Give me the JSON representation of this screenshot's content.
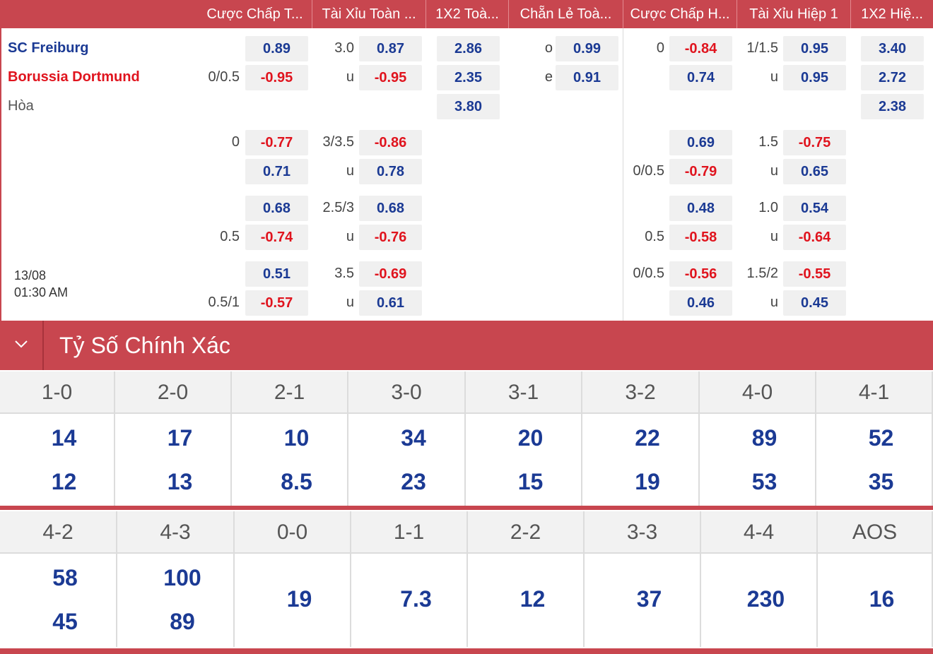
{
  "headers": [
    "Cược Chấp T...",
    "Tài Xỉu Toàn ...",
    "1X2 Toà...",
    "Chẵn Lẻ Toà...",
    "Cược Chấp H...",
    "Tài Xỉu Hiệp 1",
    "1X2 Hiệ..."
  ],
  "teams": {
    "home": "SC Freiburg",
    "away": "Borussia Dortmund",
    "draw": "Hòa"
  },
  "kickoff": {
    "date": "13/08",
    "time": "01:30 AM"
  },
  "main": {
    "ft_hdp": {
      "line1": "",
      "line2": "0/0.5",
      "odd1": "0.89",
      "odd2": "-0.95"
    },
    "ft_ou": {
      "line1": "3.0",
      "line2": "u",
      "odd1": "0.87",
      "odd2": "-0.95"
    },
    "ft_1x2": {
      "home": "2.86",
      "away": "2.35",
      "draw": "3.80"
    },
    "ft_oe": {
      "line1": "o",
      "line2": "e",
      "odd1": "0.99",
      "odd2": "0.91"
    },
    "h1_hdp": {
      "line1": "0",
      "line2": "",
      "odd1": "-0.84",
      "odd2": "0.74"
    },
    "h1_ou": {
      "line1": "1/1.5",
      "line2": "u",
      "odd1": "0.95",
      "odd2": "0.95"
    },
    "h1_1x2": {
      "home": "3.40",
      "away": "2.72",
      "draw": "2.38"
    }
  },
  "extra": [
    {
      "ft_hdp": {
        "line1": "0",
        "line2": "",
        "odd1": "-0.77",
        "odd2": "0.71"
      },
      "ft_ou": {
        "line1": "3/3.5",
        "line2": "u",
        "odd1": "-0.86",
        "odd2": "0.78"
      },
      "h1_hdp": {
        "line1": "",
        "line2": "0/0.5",
        "odd1": "0.69",
        "odd2": "-0.79"
      },
      "h1_ou": {
        "line1": "1.5",
        "line2": "u",
        "odd1": "-0.75",
        "odd2": "0.65"
      }
    },
    {
      "ft_hdp": {
        "line1": "",
        "line2": "0.5",
        "odd1": "0.68",
        "odd2": "-0.74"
      },
      "ft_ou": {
        "line1": "2.5/3",
        "line2": "u",
        "odd1": "0.68",
        "odd2": "-0.76"
      },
      "h1_hdp": {
        "line1": "",
        "line2": "0.5",
        "odd1": "0.48",
        "odd2": "-0.58"
      },
      "h1_ou": {
        "line1": "1.0",
        "line2": "u",
        "odd1": "0.54",
        "odd2": "-0.64"
      }
    },
    {
      "ft_hdp": {
        "line1": "",
        "line2": "0.5/1",
        "odd1": "0.51",
        "odd2": "-0.57"
      },
      "ft_ou": {
        "line1": "3.5",
        "line2": "u",
        "odd1": "-0.69",
        "odd2": "0.61"
      },
      "h1_hdp": {
        "line1": "0/0.5",
        "line2": "",
        "odd1": "-0.56",
        "odd2": "0.46"
      },
      "h1_ou": {
        "line1": "1.5/2",
        "line2": "u",
        "odd1": "-0.55",
        "odd2": "0.45"
      }
    }
  ],
  "section_title": "Tỷ Số Chính Xác",
  "correct_score_row1": [
    {
      "score": "1-0",
      "home": "14",
      "away": "12"
    },
    {
      "score": "2-0",
      "home": "17",
      "away": "13"
    },
    {
      "score": "2-1",
      "home": "10",
      "away": "8.5"
    },
    {
      "score": "3-0",
      "home": "34",
      "away": "23"
    },
    {
      "score": "3-1",
      "home": "20",
      "away": "15"
    },
    {
      "score": "3-2",
      "home": "22",
      "away": "19"
    },
    {
      "score": "4-0",
      "home": "89",
      "away": "53"
    },
    {
      "score": "4-1",
      "home": "52",
      "away": "35"
    }
  ],
  "correct_score_row2": [
    {
      "score": "4-2",
      "home": "58",
      "away": "45"
    },
    {
      "score": "4-3",
      "home": "100",
      "away": "89"
    },
    {
      "score": "0-0",
      "single": "19"
    },
    {
      "score": "1-1",
      "single": "7.3"
    },
    {
      "score": "2-2",
      "single": "12"
    },
    {
      "score": "3-3",
      "single": "37"
    },
    {
      "score": "4-4",
      "single": "230"
    },
    {
      "score": "AOS",
      "single": "16"
    }
  ],
  "colors": {
    "accent": "#c8464f",
    "positive": "#1b3a94",
    "negative": "#e0141e"
  }
}
